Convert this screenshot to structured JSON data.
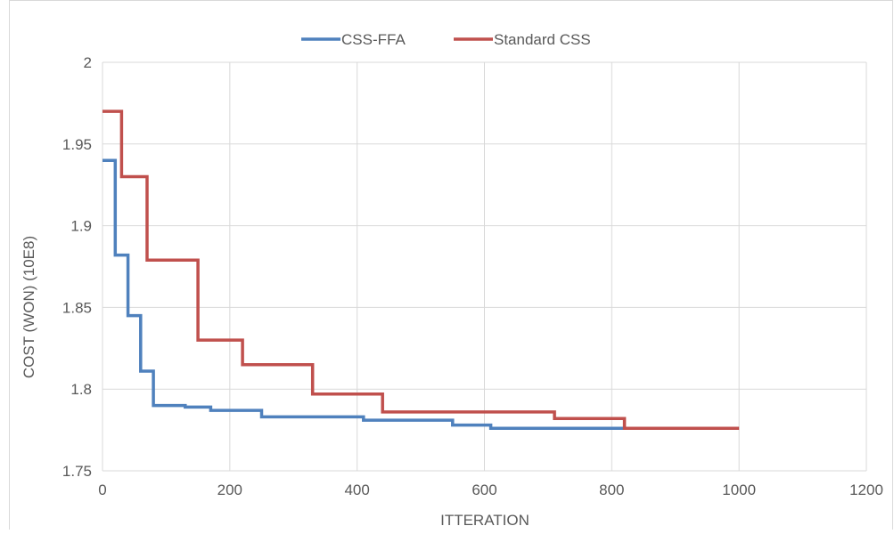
{
  "chart_data": {
    "type": "line",
    "title": "",
    "xlabel": "ITTERATION",
    "ylabel": "COST (WON) (10E8)",
    "xlim": [
      0,
      1200
    ],
    "ylim": [
      1.75,
      2
    ],
    "x_ticks": [
      0,
      200,
      400,
      600,
      800,
      1000,
      1200
    ],
    "y_ticks": [
      1.75,
      1.8,
      1.85,
      1.9,
      1.95,
      2
    ],
    "x_tick_labels": [
      "0",
      "200",
      "400",
      "600",
      "800",
      "1000",
      "1200"
    ],
    "y_tick_labels": [
      "1.75",
      "1.8",
      "1.85",
      "1.9",
      "1.95",
      "2"
    ],
    "grid": true,
    "legend_position": "top",
    "series": [
      {
        "name": "CSS-FFA",
        "color": "#4f81bd",
        "points": [
          [
            0,
            1.94
          ],
          [
            20,
            1.94
          ],
          [
            20,
            1.882
          ],
          [
            40,
            1.882
          ],
          [
            40,
            1.845
          ],
          [
            60,
            1.845
          ],
          [
            60,
            1.811
          ],
          [
            80,
            1.811
          ],
          [
            80,
            1.79
          ],
          [
            130,
            1.79
          ],
          [
            130,
            1.789
          ],
          [
            170,
            1.789
          ],
          [
            170,
            1.787
          ],
          [
            250,
            1.787
          ],
          [
            250,
            1.783
          ],
          [
            410,
            1.783
          ],
          [
            410,
            1.781
          ],
          [
            550,
            1.781
          ],
          [
            550,
            1.778
          ],
          [
            610,
            1.778
          ],
          [
            610,
            1.776
          ],
          [
            820,
            1.776
          ]
        ]
      },
      {
        "name": "Standard CSS",
        "color": "#c0504d",
        "points": [
          [
            0,
            1.97
          ],
          [
            30,
            1.97
          ],
          [
            30,
            1.93
          ],
          [
            70,
            1.93
          ],
          [
            70,
            1.879
          ],
          [
            150,
            1.879
          ],
          [
            150,
            1.83
          ],
          [
            220,
            1.83
          ],
          [
            220,
            1.815
          ],
          [
            330,
            1.815
          ],
          [
            330,
            1.797
          ],
          [
            440,
            1.797
          ],
          [
            440,
            1.786
          ],
          [
            710,
            1.786
          ],
          [
            710,
            1.782
          ],
          [
            820,
            1.782
          ],
          [
            820,
            1.776
          ],
          [
            1000,
            1.776
          ]
        ]
      }
    ]
  }
}
